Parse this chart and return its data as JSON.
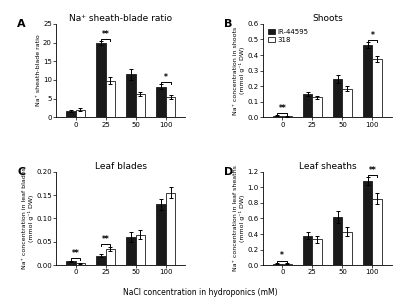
{
  "panel_A": {
    "title": "Na⁺ sheath-blade ratio",
    "ylabel": "Na⁺ sheath-blade ratio",
    "ylim": [
      0,
      25
    ],
    "yticks": [
      0,
      5,
      10,
      15,
      20,
      25
    ],
    "black_means": [
      1.8,
      19.8,
      11.5,
      8.2
    ],
    "black_errors": [
      0.3,
      0.5,
      1.5,
      0.6
    ],
    "white_means": [
      2.0,
      9.8,
      6.2,
      5.5
    ],
    "white_errors": [
      0.4,
      0.9,
      0.6,
      0.5
    ],
    "sig_labels": [
      "",
      "**",
      "",
      "*"
    ],
    "panel_label": "A"
  },
  "panel_B": {
    "title": "Shoots",
    "ylabel": "Na⁺ concentration in shoots\n(mmol g⁻¹ DW)",
    "ylim": [
      0,
      0.6
    ],
    "yticks": [
      0,
      0.1,
      0.2,
      0.3,
      0.4,
      0.5,
      0.6
    ],
    "black_means": [
      0.01,
      0.15,
      0.245,
      0.465
    ],
    "black_errors": [
      0.004,
      0.012,
      0.025,
      0.018
    ],
    "white_means": [
      0.008,
      0.13,
      0.185,
      0.375
    ],
    "white_errors": [
      0.003,
      0.01,
      0.018,
      0.018
    ],
    "sig_labels": [
      "**",
      "",
      "",
      "*"
    ],
    "panel_label": "B",
    "show_legend": true
  },
  "panel_C": {
    "title": "Leaf blades",
    "ylabel": "Na⁺ concentration in leaf blades\n(mmol g⁻¹ DW)",
    "ylim": [
      0,
      0.2
    ],
    "yticks": [
      0,
      0.05,
      0.1,
      0.15,
      0.2
    ],
    "black_means": [
      0.008,
      0.02,
      0.06,
      0.13
    ],
    "black_errors": [
      0.002,
      0.003,
      0.01,
      0.012
    ],
    "white_means": [
      0.004,
      0.035,
      0.065,
      0.155
    ],
    "white_errors": [
      0.001,
      0.005,
      0.01,
      0.012
    ],
    "sig_labels": [
      "**",
      "**",
      "",
      ""
    ],
    "panel_label": "C"
  },
  "panel_D": {
    "title": "Leaf sheaths",
    "ylabel": "Na⁺ concentration in leaf sheaths\n(mmol g⁻¹ DW)",
    "ylim": [
      0,
      1.2
    ],
    "yticks": [
      0,
      0.2,
      0.4,
      0.6,
      0.8,
      1.0,
      1.2
    ],
    "black_means": [
      0.02,
      0.38,
      0.62,
      1.08
    ],
    "black_errors": [
      0.01,
      0.04,
      0.08,
      0.05
    ],
    "white_means": [
      0.02,
      0.33,
      0.43,
      0.85
    ],
    "white_errors": [
      0.01,
      0.04,
      0.06,
      0.07
    ],
    "sig_labels": [
      "*",
      "",
      "",
      "**"
    ],
    "panel_label": "D"
  },
  "bar_width": 0.32,
  "black_color": "#1a1a1a",
  "white_color": "#ffffff",
  "edge_color": "#1a1a1a",
  "x_labels": [
    0,
    25,
    50,
    100
  ],
  "xlabel": "NaCl concentration in hydroponics (mM)",
  "legend_labels": [
    "IR-44595",
    "318"
  ]
}
